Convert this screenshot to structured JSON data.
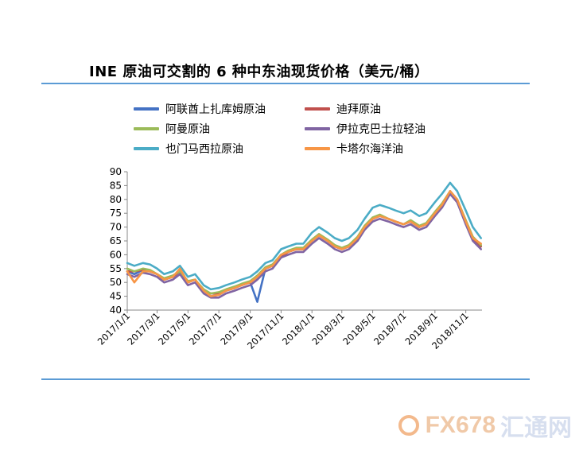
{
  "chart_data": {
    "type": "line",
    "title": "INE 原油可交割的 6 种中东油现货价格（美元/桶）",
    "xlabel": "",
    "ylabel": "",
    "ylim": [
      40,
      90
    ],
    "yticks": [
      40,
      45,
      50,
      55,
      60,
      65,
      70,
      75,
      80,
      85,
      90
    ],
    "x_tick_labels": [
      "2017/1/1",
      "2017/3/1",
      "2017/5/1",
      "2017/7/1",
      "2017/9/1",
      "2017/11/1",
      "2018/1/1",
      "2018/3/1",
      "2018/5/1",
      "2018/7/1",
      "2018/9/1",
      "2018/11/1"
    ],
    "x": [
      "2017/1/1",
      "2017/1/15",
      "2017/2/1",
      "2017/2/15",
      "2017/3/1",
      "2017/3/15",
      "2017/4/1",
      "2017/4/15",
      "2017/5/1",
      "2017/5/15",
      "2017/6/1",
      "2017/6/15",
      "2017/7/1",
      "2017/7/15",
      "2017/8/1",
      "2017/8/15",
      "2017/9/1",
      "2017/9/15",
      "2017/10/1",
      "2017/10/15",
      "2017/11/1",
      "2017/11/15",
      "2017/12/1",
      "2017/12/15",
      "2018/1/1",
      "2018/1/15",
      "2018/2/1",
      "2018/2/15",
      "2018/3/1",
      "2018/3/15",
      "2018/4/1",
      "2018/4/15",
      "2018/5/1",
      "2018/5/15",
      "2018/6/1",
      "2018/6/15",
      "2018/7/1",
      "2018/7/15",
      "2018/8/1",
      "2018/8/15",
      "2018/9/1",
      "2018/9/15",
      "2018/10/1",
      "2018/10/15",
      "2018/11/1",
      "2018/11/15",
      "2018/12/1"
    ],
    "grid": false,
    "legend_position": "top",
    "series": [
      {
        "name": "阿联酋上扎库姆原油",
        "color": "#4472c4",
        "values": [
          54,
          53,
          54.5,
          54,
          53,
          51,
          52,
          54,
          50,
          51,
          47,
          45,
          45.5,
          47,
          48,
          49,
          50,
          43,
          55,
          56,
          60,
          61,
          62,
          62,
          65,
          67,
          65,
          63,
          62,
          63,
          66,
          70,
          73,
          74,
          73,
          72,
          71,
          72,
          70,
          71,
          75,
          78,
          83,
          80,
          72,
          66,
          63
        ]
      },
      {
        "name": "迪拜原油",
        "color": "#c0504d",
        "values": [
          54,
          54,
          54.5,
          54,
          53,
          51,
          52,
          54,
          50,
          51,
          47,
          46,
          46,
          47,
          48,
          49,
          50,
          52,
          55,
          56,
          59,
          61,
          62,
          62,
          65,
          67,
          65,
          63,
          62,
          63,
          66,
          70,
          73,
          74,
          73,
          72,
          71,
          72,
          70,
          71,
          75,
          78,
          82,
          79,
          72,
          66,
          63
        ]
      },
      {
        "name": "阿曼原油",
        "color": "#9bbb59",
        "values": [
          55,
          54,
          55,
          54.5,
          53,
          51.5,
          52.5,
          54,
          50.5,
          51,
          47.5,
          46,
          46.5,
          47.5,
          48.5,
          49.5,
          50.5,
          52.5,
          55.5,
          56.5,
          60,
          61.5,
          62.5,
          62.5,
          65.5,
          67.5,
          65.5,
          63.5,
          62.5,
          63.5,
          66.5,
          70.5,
          73.5,
          74.5,
          73,
          72,
          71,
          72.5,
          70.5,
          71.5,
          75.5,
          78.5,
          83,
          80,
          72.5,
          66.5,
          63.5
        ]
      },
      {
        "name": "伊拉克巴士拉轻油",
        "color": "#8064a2",
        "values": [
          53,
          52,
          53.5,
          53,
          52,
          50,
          51,
          53,
          49,
          50,
          46,
          44.5,
          44.5,
          46,
          47,
          48,
          49,
          51,
          54,
          55,
          59,
          60,
          61,
          61,
          64,
          66,
          64,
          62,
          61,
          62,
          65,
          69,
          72,
          73,
          72,
          71,
          70,
          71,
          69,
          70,
          74,
          77,
          82,
          79,
          71,
          65,
          62
        ]
      },
      {
        "name": "也门马西拉原油",
        "color": "#4bacc6",
        "values": [
          57,
          56,
          57,
          56.5,
          55,
          53,
          54,
          56,
          52,
          53,
          49,
          47.5,
          48,
          49,
          50,
          51,
          52,
          54,
          57,
          58,
          62,
          63,
          64,
          64,
          68,
          70,
          68,
          66,
          65,
          66,
          69,
          73,
          77,
          78,
          77,
          76,
          75,
          76,
          74,
          75,
          79,
          82,
          86,
          83,
          76,
          70,
          66
        ]
      },
      {
        "name": "卡塔尔海洋油",
        "color": "#f79646",
        "values": [
          54,
          50,
          54,
          54,
          53,
          51,
          52,
          55,
          50,
          51,
          47,
          45,
          45.5,
          47,
          48,
          49,
          50,
          52,
          55,
          56,
          60,
          61,
          62,
          62,
          65,
          67,
          65,
          63,
          62,
          63,
          66,
          70,
          73,
          74,
          73,
          72,
          71,
          72,
          70,
          71,
          75,
          78,
          83,
          80,
          72,
          66,
          64
        ]
      }
    ]
  },
  "watermark": {
    "text": "FX678",
    "cn": "汇通网"
  }
}
